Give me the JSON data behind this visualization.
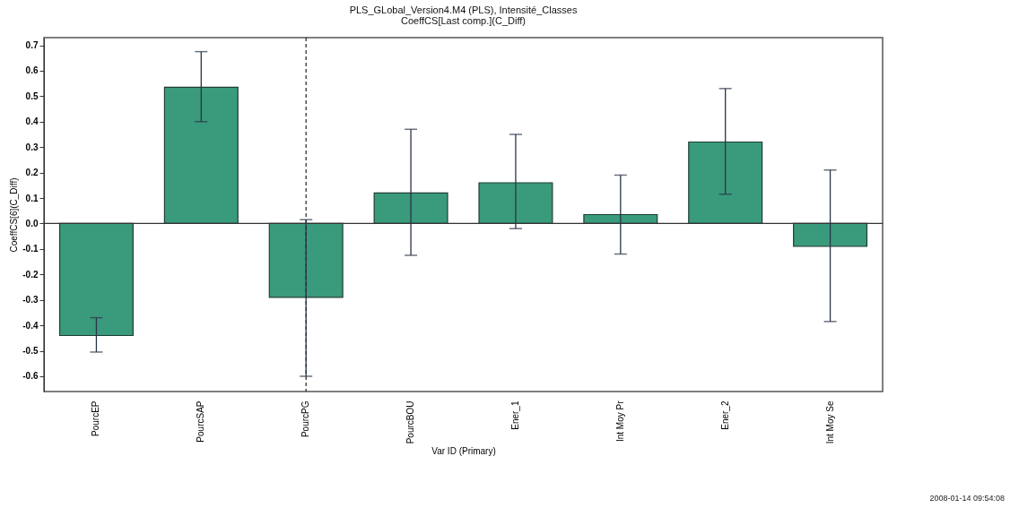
{
  "chart_data": {
    "type": "bar",
    "title": "PLS_GLobal_Version4.M4 (PLS), Intensité_Classes",
    "subtitle": "CoeffCS[Last comp.](C_Diff)",
    "xlabel": "Var ID (Primary)",
    "ylabel": "CoeffCS[6](C_Diff)",
    "categories": [
      "PourcEP",
      "PourcSAP",
      "PourcPG",
      "PourcBOU",
      "Ener_1",
      "Int Moy Pr",
      "Ener_2",
      "Int Moy Se"
    ],
    "values": [
      -0.44,
      0.535,
      -0.29,
      0.12,
      0.16,
      0.035,
      0.32,
      -0.09
    ],
    "errors": [
      [
        -0.505,
        -0.37
      ],
      [
        0.4,
        0.675
      ],
      [
        -0.6,
        0.015
      ],
      [
        -0.125,
        0.37
      ],
      [
        -0.02,
        0.35
      ],
      [
        -0.12,
        0.19
      ],
      [
        0.115,
        0.53
      ],
      [
        -0.385,
        0.21
      ]
    ],
    "color": "#3a9a7c",
    "ylim": [
      -0.66,
      0.73
    ],
    "yticks": [
      -0.6,
      -0.5,
      -0.4,
      -0.3,
      -0.2,
      -0.1,
      {
        "value": 0,
        "label": "0.0"
      },
      0.1,
      0.2,
      0.3,
      0.4,
      0.5,
      0.6,
      0.7
    ],
    "ref_lines": [
      {
        "axis": "x",
        "value": "PourcPG",
        "line_style": "dashed"
      },
      {
        "axis": "y",
        "value": 0,
        "line_style": "solid"
      }
    ],
    "grid": false,
    "annotations": [
      "2008-01-14 09:54:08"
    ]
  }
}
